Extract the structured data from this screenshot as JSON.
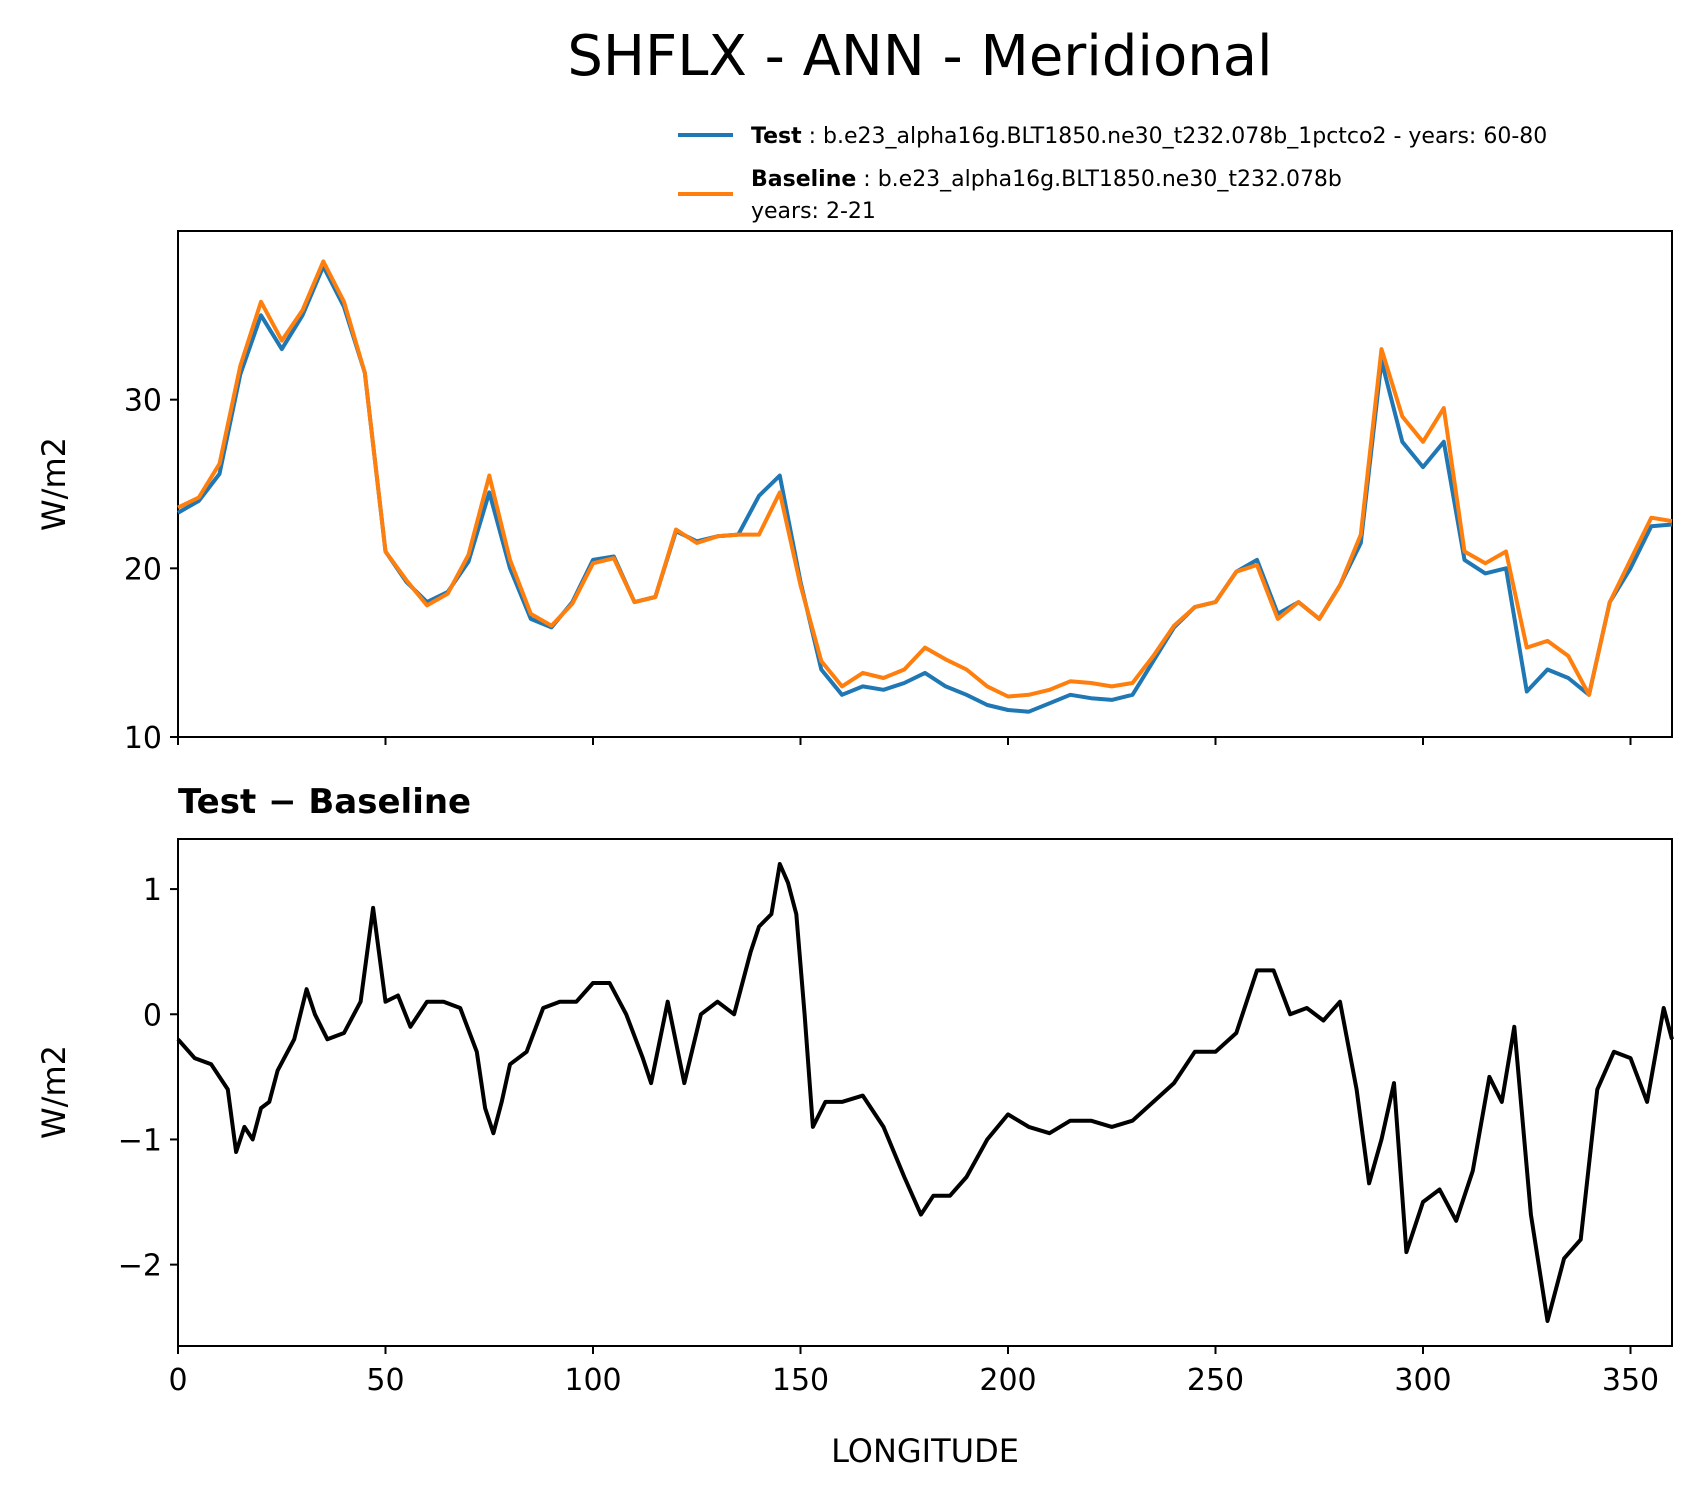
{
  "figure": {
    "title": "SHFLX - ANN - Meridional"
  },
  "legend": {
    "test_label": "Test",
    "test_desc": " : b.e23_alpha16g.BLT1850.ne30_t232.078b_1pctco2 - years: 60-80",
    "baseline_label": "Baseline",
    "baseline_desc": " : b.e23_alpha16g.BLT1850.ne30_t232.078b",
    "baseline_years": "years: 2-21"
  },
  "colors": {
    "test": "#1f77b4",
    "baseline": "#ff7f0e",
    "diff": "#000000"
  },
  "chart_data": [
    {
      "type": "line",
      "title": "",
      "xlabel": "",
      "ylabel": "W/m2",
      "xlim": [
        0,
        360
      ],
      "ylim": [
        10,
        40
      ],
      "xticks": [
        0,
        50,
        100,
        150,
        200,
        250,
        300,
        350
      ],
      "yticks": [
        10,
        20,
        30
      ],
      "ytick_labels": [
        "10",
        "20",
        "30"
      ],
      "grid": false,
      "legend_position": "top-right, above plot",
      "x": [
        0,
        5,
        10,
        15,
        20,
        25,
        30,
        35,
        40,
        45,
        50,
        55,
        60,
        65,
        70,
        75,
        80,
        85,
        90,
        95,
        100,
        105,
        110,
        115,
        120,
        125,
        130,
        135,
        140,
        145,
        150,
        155,
        160,
        165,
        170,
        175,
        180,
        185,
        190,
        195,
        200,
        205,
        210,
        215,
        220,
        225,
        230,
        235,
        240,
        245,
        250,
        255,
        260,
        265,
        270,
        275,
        280,
        285,
        290,
        295,
        300,
        305,
        310,
        315,
        320,
        325,
        330,
        335,
        340,
        345,
        350,
        355,
        360
      ],
      "series": [
        {
          "name": "Test",
          "values": [
            23.3,
            24.0,
            25.6,
            31.5,
            35.0,
            33.0,
            35.0,
            37.9,
            35.5,
            31.6,
            21.0,
            19.2,
            18.0,
            18.6,
            20.4,
            24.5,
            20.0,
            17.0,
            16.5,
            18.0,
            20.5,
            20.7,
            18.0,
            18.3,
            22.2,
            21.6,
            21.9,
            22.0,
            24.3,
            25.5,
            19.2,
            14.0,
            12.5,
            13.0,
            12.8,
            13.2,
            13.8,
            13.0,
            12.5,
            11.9,
            11.6,
            11.5,
            12.0,
            12.5,
            12.3,
            12.2,
            12.5,
            14.5,
            16.5,
            17.7,
            18.0,
            19.8,
            20.5,
            17.3,
            18.0,
            17.0,
            19.0,
            21.5,
            32.3,
            27.5,
            26.0,
            27.5,
            20.5,
            19.7,
            20.0,
            12.7,
            14.0,
            13.5,
            12.5,
            18.0,
            20.0,
            22.5,
            22.6
          ]
        },
        {
          "name": "Baseline",
          "values": [
            23.6,
            24.2,
            26.2,
            32.0,
            35.8,
            33.5,
            35.3,
            38.2,
            35.8,
            31.6,
            21.0,
            19.3,
            17.8,
            18.5,
            20.8,
            25.5,
            20.5,
            17.3,
            16.6,
            17.9,
            20.3,
            20.6,
            18.0,
            18.3,
            22.3,
            21.5,
            21.9,
            22.0,
            22.0,
            24.5,
            19.0,
            14.5,
            13.0,
            13.8,
            13.5,
            14.0,
            15.3,
            14.6,
            14.0,
            13.0,
            12.4,
            12.5,
            12.8,
            13.3,
            13.2,
            13.0,
            13.2,
            14.8,
            16.6,
            17.7,
            18.0,
            19.8,
            20.2,
            17.0,
            18.0,
            17.0,
            19.0,
            22.0,
            33.0,
            29.0,
            27.5,
            29.5,
            21.0,
            20.3,
            21.0,
            15.3,
            15.7,
            14.8,
            12.5,
            18.0,
            20.5,
            23.0,
            22.8
          ]
        }
      ]
    },
    {
      "type": "line",
      "title": "Test − Baseline",
      "xlabel": "LONGITUDE",
      "ylabel": "W/m2",
      "xlim": [
        0,
        360
      ],
      "ylim": [
        -2.65,
        1.4
      ],
      "xticks": [
        0,
        50,
        100,
        150,
        200,
        250,
        300,
        350
      ],
      "yticks": [
        -2,
        -1,
        0,
        1
      ],
      "ytick_labels": [
        "−2",
        "−1",
        "0",
        "1"
      ],
      "grid": false,
      "x": [
        0,
        4,
        8,
        12,
        14,
        16,
        18,
        20,
        22,
        24,
        28,
        31,
        33,
        36,
        40,
        44,
        47,
        50,
        53,
        56,
        60,
        64,
        68,
        72,
        74,
        76,
        78,
        80,
        84,
        88,
        92,
        96,
        100,
        104,
        108,
        112,
        114,
        118,
        122,
        126,
        130,
        134,
        138,
        140,
        143,
        145,
        147,
        149,
        151,
        153,
        156,
        160,
        165,
        170,
        175,
        179,
        182,
        186,
        190,
        195,
        200,
        205,
        210,
        215,
        220,
        225,
        230,
        235,
        240,
        245,
        250,
        255,
        260,
        264,
        268,
        272,
        276,
        280,
        284,
        287,
        290,
        293,
        296,
        300,
        304,
        308,
        312,
        316,
        319,
        322,
        326,
        330,
        334,
        338,
        342,
        346,
        350,
        354,
        358,
        360
      ],
      "series": [
        {
          "name": "Test − Baseline",
          "values": [
            -0.2,
            -0.35,
            -0.4,
            -0.6,
            -1.1,
            -0.9,
            -1.0,
            -0.75,
            -0.7,
            -0.45,
            -0.2,
            0.2,
            0.0,
            -0.2,
            -0.15,
            0.1,
            0.85,
            0.1,
            0.15,
            -0.1,
            0.1,
            0.1,
            0.05,
            -0.3,
            -0.75,
            -0.95,
            -0.7,
            -0.4,
            -0.3,
            0.05,
            0.1,
            0.1,
            0.25,
            0.25,
            0.0,
            -0.35,
            -0.55,
            0.1,
            -0.55,
            0.0,
            0.1,
            0.0,
            0.5,
            0.7,
            0.8,
            1.2,
            1.05,
            0.8,
            0.0,
            -0.9,
            -0.7,
            -0.7,
            -0.65,
            -0.9,
            -1.3,
            -1.6,
            -1.45,
            -1.45,
            -1.3,
            -1.0,
            -0.8,
            -0.9,
            -0.95,
            -0.85,
            -0.85,
            -0.9,
            -0.85,
            -0.7,
            -0.55,
            -0.3,
            -0.3,
            -0.15,
            0.35,
            0.35,
            0.0,
            0.05,
            -0.05,
            0.1,
            -0.6,
            -1.35,
            -1.0,
            -0.55,
            -1.9,
            -1.5,
            -1.4,
            -1.65,
            -1.25,
            -0.5,
            -0.7,
            -0.1,
            -1.6,
            -2.45,
            -1.95,
            -1.8,
            -0.6,
            -0.3,
            -0.35,
            -0.7,
            0.05,
            -0.2
          ]
        }
      ]
    }
  ]
}
